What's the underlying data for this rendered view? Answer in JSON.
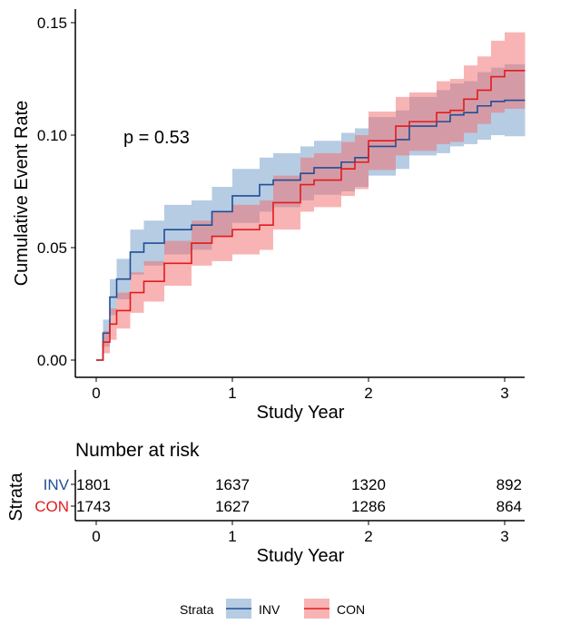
{
  "chart_data": {
    "type": "line",
    "subtype": "cumulative-incidence-step",
    "title": "",
    "xlabel": "Study Year",
    "ylabel": "Cumulative Event Rate",
    "xlim": [
      0,
      3.15
    ],
    "ylim": [
      0,
      0.15
    ],
    "xticks": [
      "0",
      "1",
      "2",
      "3"
    ],
    "yticks": [
      "0.00",
      "0.05",
      "0.10",
      "0.15"
    ],
    "annotation": "p = 0.53",
    "x": [
      0,
      0.05,
      0.1,
      0.15,
      0.25,
      0.35,
      0.5,
      0.7,
      0.85,
      1.0,
      1.2,
      1.3,
      1.5,
      1.6,
      1.8,
      1.9,
      2.0,
      2.2,
      2.3,
      2.5,
      2.6,
      2.7,
      2.8,
      2.9,
      3.0,
      3.15
    ],
    "series": [
      {
        "name": "INV",
        "color": "#1F4E96",
        "band_color": "#6E9AC8",
        "values": [
          0,
          0.012,
          0.028,
          0.036,
          0.048,
          0.052,
          0.058,
          0.06,
          0.066,
          0.073,
          0.078,
          0.08,
          0.083,
          0.0855,
          0.088,
          0.09,
          0.095,
          0.098,
          0.104,
          0.106,
          0.109,
          0.11,
          0.113,
          0.115,
          0.1155,
          0.1155
        ],
        "ci_halfwidth": [
          0,
          0.006,
          0.008,
          0.009,
          0.01,
          0.01,
          0.011,
          0.011,
          0.011,
          0.012,
          0.012,
          0.012,
          0.012,
          0.012,
          0.013,
          0.013,
          0.013,
          0.013,
          0.013,
          0.014,
          0.014,
          0.014,
          0.015,
          0.015,
          0.016,
          0.016
        ]
      },
      {
        "name": "CON",
        "color": "#E41A1C",
        "band_color": "#F26A6A",
        "values": [
          0,
          0.008,
          0.016,
          0.022,
          0.03,
          0.035,
          0.043,
          0.052,
          0.055,
          0.058,
          0.06,
          0.07,
          0.078,
          0.08,
          0.085,
          0.088,
          0.0975,
          0.104,
          0.106,
          0.11,
          0.111,
          0.116,
          0.12,
          0.126,
          0.1287,
          0.1287
        ],
        "ci_halfwidth": [
          0,
          0.005,
          0.007,
          0.008,
          0.009,
          0.009,
          0.01,
          0.01,
          0.011,
          0.011,
          0.011,
          0.012,
          0.012,
          0.012,
          0.012,
          0.012,
          0.013,
          0.013,
          0.013,
          0.014,
          0.014,
          0.015,
          0.015,
          0.016,
          0.017,
          0.017
        ]
      }
    ],
    "legend": {
      "title": "Strata",
      "position": "bottom",
      "entries": [
        "INV",
        "CON"
      ]
    }
  },
  "risk_table": {
    "title": "Number at risk",
    "ylabel": "Strata",
    "xlabel": "Study Year",
    "times": [
      "0",
      "1",
      "2",
      "3"
    ],
    "rows": [
      {
        "label": "INV",
        "color": "#1F4E96",
        "counts": [
          "1801",
          "1637",
          "1320",
          "892"
        ]
      },
      {
        "label": "CON",
        "color": "#E41A1C",
        "counts": [
          "1743",
          "1627",
          "1286",
          "864"
        ]
      }
    ]
  }
}
